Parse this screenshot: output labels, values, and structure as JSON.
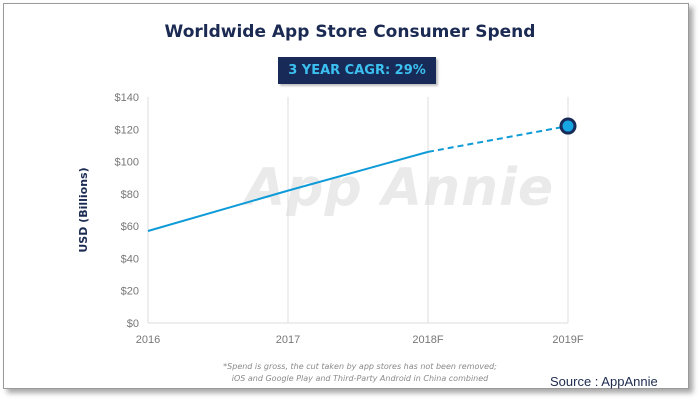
{
  "watermark": "App Annie",
  "source": "Source : AppAnnie",
  "footnote": [
    "*Spend is gross, the cut taken by app stores has not been removed;",
    "iOS and Google Play and Third-Party Android in China combined"
  ],
  "colors": {
    "line": "#0f9bd7",
    "title": "#1b2a52",
    "badge_bg": "#172a58",
    "badge_text": "#3cc0f0",
    "marker_ring": "#172a58",
    "marker_fill": "#16a6e3"
  },
  "chart_data": {
    "type": "line",
    "title": "Worldwide App Store Consumer Spend",
    "annotation": "3 YEAR CAGR: 29%",
    "categories": [
      "2016",
      "2017",
      "2018F",
      "2019F"
    ],
    "ylabel": "USD (Billions)",
    "ylim": [
      0,
      140
    ],
    "yticks": [
      0,
      20,
      40,
      60,
      80,
      100,
      120,
      140
    ],
    "ytick_labels": [
      "$0",
      "$20",
      "$40",
      "$60",
      "$80",
      "$100",
      "$120",
      "$140"
    ],
    "grid": "vertical",
    "series": [
      {
        "values": [
          57,
          82,
          106,
          122
        ],
        "style": [
          "solid",
          "solid",
          "dashed"
        ],
        "highlight_last_point": true
      }
    ]
  }
}
